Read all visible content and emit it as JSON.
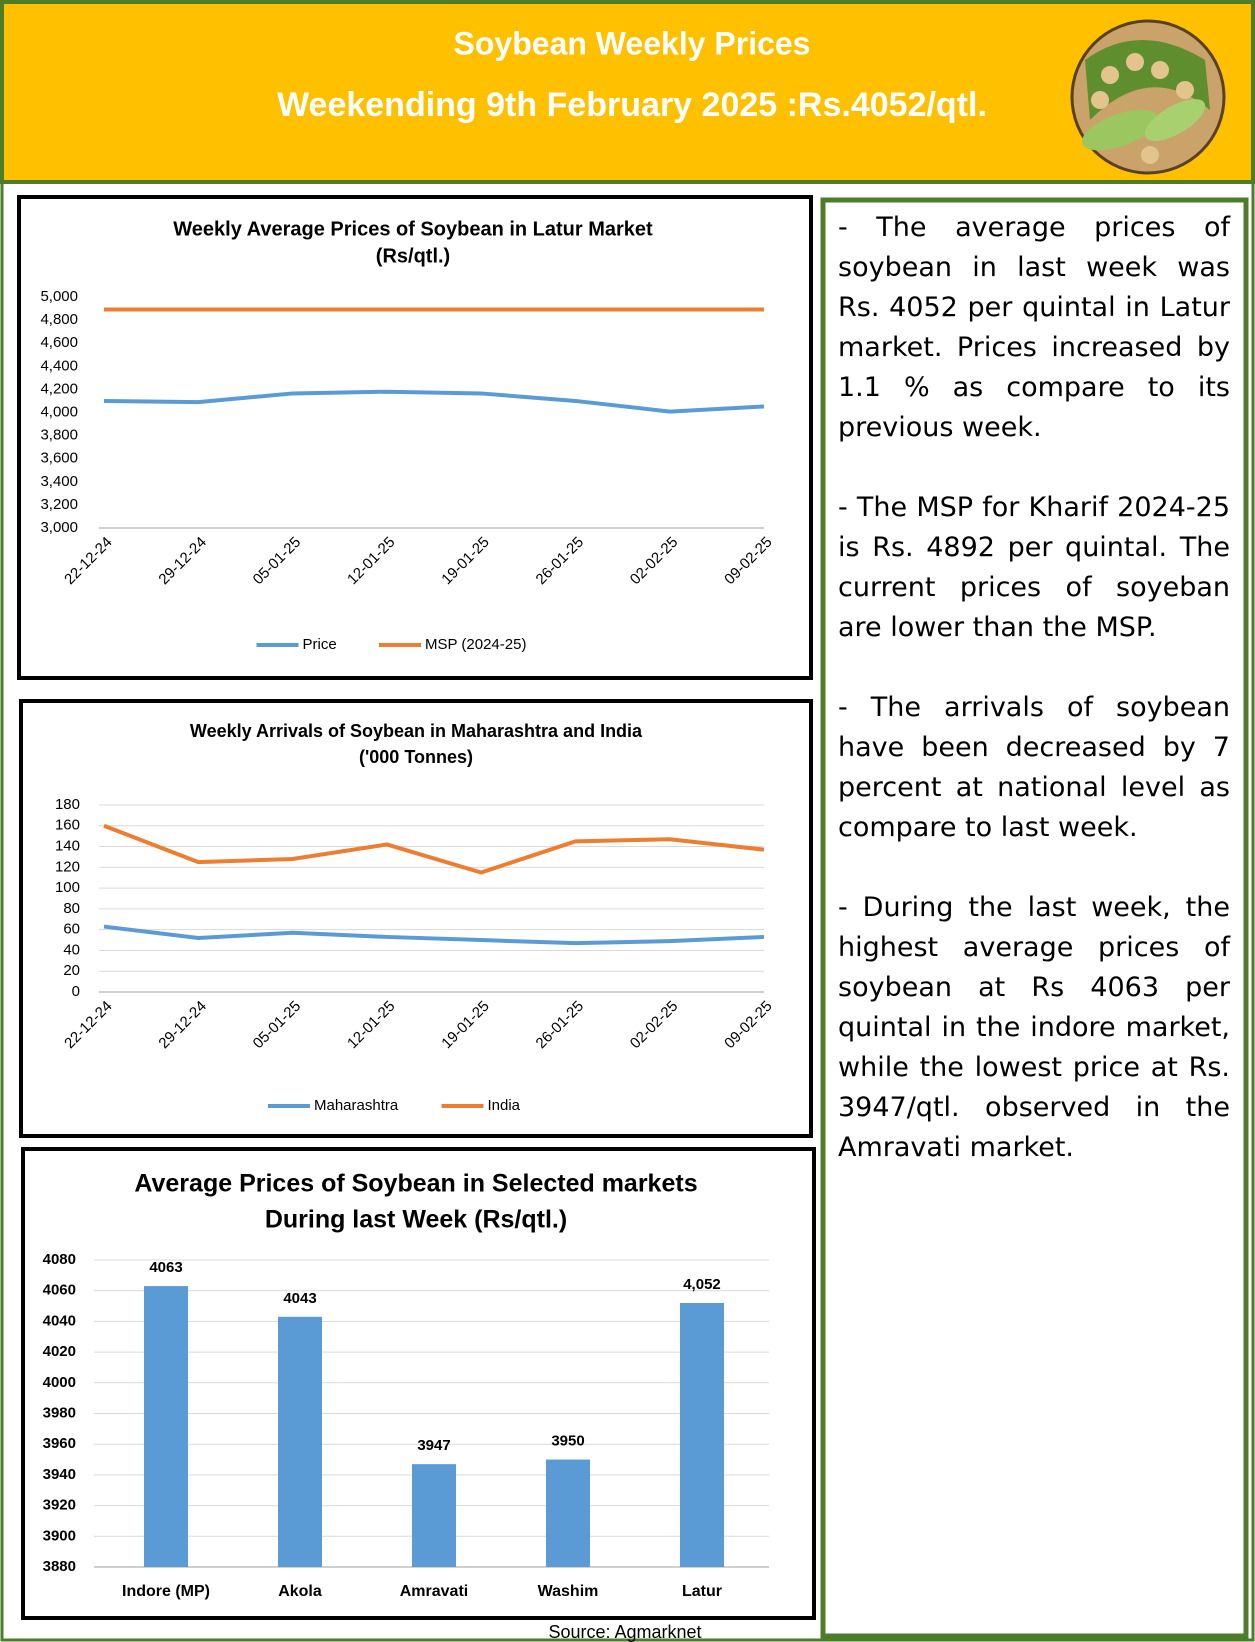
{
  "header": {
    "title": "Soybean Weekly Prices",
    "subtitle": "Weekending 9th February 2025  :Rs.4052/qtl."
  },
  "chart_data": [
    {
      "type": "line",
      "title": "Weekly Average Prices of Soybean in Latur Market",
      "subtitle": "(Rs/qtl.)",
      "categories": [
        "22-12-24",
        "29-12-24",
        "05-01-25",
        "12-01-25",
        "19-01-25",
        "26-01-25",
        "02-02-25",
        "09-02-25"
      ],
      "series": [
        {
          "name": "Price",
          "color": "#5B9BD5",
          "values": [
            4100,
            4090,
            4165,
            4180,
            4165,
            4100,
            4008,
            4052
          ]
        },
        {
          "name": "MSP (2024-25)",
          "color": "#ED7D31",
          "values": [
            4892,
            4892,
            4892,
            4892,
            4892,
            4892,
            4892,
            4892
          ]
        }
      ],
      "ylim": [
        3000,
        5000
      ],
      "yticks": [
        {
          "value": 3000,
          "label": "3,000"
        },
        {
          "value": 3200,
          "label": "3,200"
        },
        {
          "value": 3400,
          "label": "3,400"
        },
        {
          "value": 3600,
          "label": "3,600"
        },
        {
          "value": 3800,
          "label": "3,800"
        },
        {
          "value": 4000,
          "label": "4,000"
        },
        {
          "value": 4200,
          "label": "4,200"
        },
        {
          "value": 4400,
          "label": "4,400"
        },
        {
          "value": 4600,
          "label": "4,600"
        },
        {
          "value": 4800,
          "label": "4,800"
        },
        {
          "value": 5000,
          "label": "5,000"
        }
      ],
      "grid": false,
      "legend": "bottom"
    },
    {
      "type": "line",
      "title": "Weekly Arrivals  of Soybean in Maharashtra and India",
      "subtitle": "('000 Tonnes)",
      "categories": [
        "22-12-24",
        "29-12-24",
        "05-01-25",
        "12-01-25",
        "19-01-25",
        "26-01-25",
        "02-02-25",
        "09-02-25"
      ],
      "series": [
        {
          "name": "Maharashtra",
          "color": "#5B9BD5",
          "values": [
            63,
            52,
            57,
            53,
            50,
            47,
            49,
            53
          ]
        },
        {
          "name": "India",
          "color": "#ED7D31",
          "values": [
            160,
            125,
            128,
            142,
            115,
            145,
            147,
            137
          ]
        }
      ],
      "ylim": [
        0,
        180
      ],
      "yticks": [
        0,
        20,
        40,
        60,
        80,
        100,
        120,
        140,
        160,
        180
      ],
      "grid": true,
      "legend": "bottom"
    },
    {
      "type": "bar",
      "title": "Average Prices of Soybean in Selected markets",
      "subtitle": "During last Week (Rs/qtl.)",
      "categories": [
        "Indore (MP)",
        "Akola",
        "Amravati",
        "Washim",
        "Latur"
      ],
      "values": [
        4063,
        4043,
        3947,
        3950,
        4052
      ],
      "value_labels": [
        "4063",
        "4043",
        "3947",
        "3950",
        "4,052"
      ],
      "color": "#5B9BD5",
      "ylim": [
        3880,
        4080
      ],
      "yticks": [
        3880,
        3900,
        3920,
        3940,
        3960,
        3980,
        4000,
        4020,
        4040,
        4060,
        4080
      ],
      "grid": true
    }
  ],
  "notes": [
    "- The average prices of soybean in last week was Rs. 4052 per quintal in Latur market. Prices increased  by 1.1 % as compare to  its previous week.",
    "- The MSP for Kharif 2024-25 is Rs. 4892 per quintal. The current prices of soyeban are lower than the MSP.",
    "- The arrivals of soybean have been decreased by 7 percent at national level as compare to last week.",
    "- During the last week, the highest average prices of soybean at Rs 4063 per quintal in the indore market, while the lowest price at Rs. 3947/qtl. observed in the Amravati market."
  ],
  "source": "Source: Agmarknet"
}
